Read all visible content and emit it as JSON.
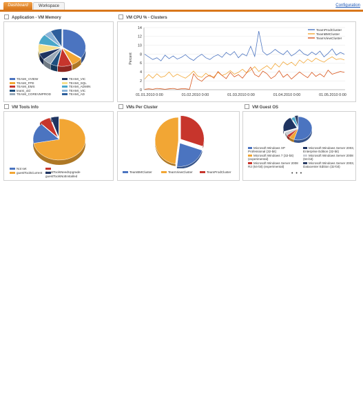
{
  "tabs": [
    {
      "label": "Dashboard"
    },
    {
      "label": "Workspace"
    }
  ],
  "config_link": "Configuration",
  "panels": {
    "vm_memory": {
      "title": "Application - VM Memory",
      "legend": [
        {
          "label": "TEAMI_VVIEW",
          "color": "#4b74c0"
        },
        {
          "label": "TEAMI_VIC",
          "color": "#1f3461"
        },
        {
          "label": "TEAMI_FPE",
          "color": "#f2a634"
        },
        {
          "label": "TEAMI_SQL",
          "color": "#f5df8b"
        },
        {
          "label": "TEAMI_EMS",
          "color": "#c7352c"
        },
        {
          "label": "TEAMI_ADMIN",
          "color": "#49a7c9"
        },
        {
          "label": "teami_old",
          "color": "#1e4f7f"
        },
        {
          "label": "TEAMI_VIC",
          "color": "#8bb4d9"
        },
        {
          "label": "TEAMI_COREVMPROD",
          "color": "#9aa9b7"
        },
        {
          "label": "TEAMI_AD",
          "color": "#2c5d9b"
        }
      ],
      "slices": [
        {
          "value": 35,
          "color": "#4b74c0"
        },
        {
          "value": 8,
          "color": "#f2a634"
        },
        {
          "value": 10,
          "color": "#c7352c"
        },
        {
          "value": 5,
          "color": "#1e4f7f"
        },
        {
          "value": 6,
          "color": "#9aa9b7"
        },
        {
          "value": 6,
          "color": "#1f3461"
        },
        {
          "value": 8,
          "color": "#f5df8b"
        },
        {
          "value": 9,
          "color": "#49a7c9"
        },
        {
          "value": 5,
          "color": "#8bb4d9"
        },
        {
          "value": 8,
          "color": "#2c5d9b"
        }
      ]
    },
    "cpu": {
      "title": "VM CPU % - Clusters"
    },
    "vm_tools": {
      "title": "VM Tools Info",
      "legend": [
        {
          "label": "Not set",
          "color": "#4b74c0"
        },
        {
          "label": "guestToolsNeedUpgrade",
          "color": "#c7352c"
        },
        {
          "label": "guestToolsCurrent",
          "color": "#f2a634"
        },
        {
          "label": "guestToolsNotInstalled",
          "color": "#1f3461"
        }
      ],
      "slices": [
        {
          "value": 72,
          "color": "#f2a634"
        },
        {
          "value": 16,
          "color": "#4b74c0"
        },
        {
          "value": 7,
          "color": "#c7352c"
        },
        {
          "value": 5,
          "color": "#1f3461"
        }
      ]
    },
    "vms_per_cluster": {
      "title": "VMs Per Cluster",
      "legend": [
        {
          "label": "TeamBMCluster",
          "color": "#4b74c0"
        },
        {
          "label": "TeamViewCluster",
          "color": "#f2a634"
        },
        {
          "label": "TeamProdCluster",
          "color": "#c7352c"
        }
      ],
      "slices": [
        {
          "value": 30,
          "color": "#c7352c"
        },
        {
          "value": 22,
          "color": "#4b74c0"
        },
        {
          "value": 48,
          "color": "#f2a634"
        }
      ]
    },
    "guest_os": {
      "title": "VM Guest OS",
      "legend": [
        {
          "label": "Microsoft Windows XP Professional (32-bit)",
          "color": "#4b74c0"
        },
        {
          "label": "Microsoft Windows Server 2003, Enterprise Edition (32-bit)",
          "color": "#1f3461"
        },
        {
          "label": "Microsoft Windows 7 (32-bit) (experimental)",
          "color": "#f2a634"
        },
        {
          "label": "Microsoft Windows Server 2008 (64-bit)",
          "color": "#c9ccd2"
        },
        {
          "label": "Microsoft Windows Server 2008 R2 (64-bit) (experimental)",
          "color": "#c7352c"
        },
        {
          "label": "Microsoft Windows Server 2003, Datacenter Edition (32-bit)",
          "color": "#2c3f66"
        }
      ],
      "slices": [
        {
          "value": 55,
          "color": "#4b74c0"
        },
        {
          "value": 6,
          "color": "#f2a634"
        },
        {
          "value": 4,
          "color": "#c7352c"
        },
        {
          "value": 5,
          "color": "#c9ccd2"
        },
        {
          "value": 22,
          "color": "#1f3461"
        },
        {
          "value": 4,
          "color": "#49a7c9"
        },
        {
          "value": 4,
          "color": "#2c3f66"
        }
      ],
      "more": "• • •"
    }
  },
  "chart_data": {
    "type": "line",
    "title": "VM CPU % - Clusters",
    "xlabel": "",
    "ylabel": "Percent",
    "ylim": [
      0,
      14
    ],
    "yticks": [
      0,
      2,
      4,
      6,
      8,
      10,
      12,
      14
    ],
    "xticks": [
      "01.01.2010 0:00",
      "01.02.2010 0:00",
      "01.03.2010 0:00",
      "01.04.2010 0:00",
      "01.05.2010 0:00"
    ],
    "legend_position": "top-right",
    "series": [
      {
        "name": "TeamProdCluster",
        "color": "#4b74c0",
        "values": [
          8,
          7.4,
          6.8,
          7.2,
          6.5,
          7.8,
          7,
          7.6,
          6.9,
          7.3,
          7.9,
          7.1,
          6.6,
          7.4,
          8,
          7.2,
          6.8,
          7.5,
          7.9,
          7.3,
          8.4,
          7.8,
          8.6,
          7.2,
          8.1,
          7.6,
          9.8,
          7.5,
          13.2,
          8.6,
          7.8,
          8.3,
          9.1,
          8.4,
          7.9,
          8.8,
          7.6,
          8.2,
          9,
          8.1,
          7.7,
          8.5,
          7.9,
          8.7,
          7.4,
          8.2,
          9.2,
          7.8,
          8.4,
          8
        ]
      },
      {
        "name": "TeamBMCluster",
        "color": "#f2a634",
        "values": [
          2.4,
          3.4,
          2.6,
          3.6,
          2.8,
          3.1,
          4,
          2.9,
          3.5,
          3,
          2.6,
          3.3,
          4.2,
          3.1,
          2.8,
          3.7,
          3,
          2.9,
          3.9,
          3.2,
          3.6,
          4.3,
          3.5,
          3.9,
          4.6,
          3.8,
          4.4,
          5.2,
          4.1,
          4.8,
          5.4,
          4.6,
          5.9,
          5.1,
          6.3,
          5.6,
          6.2,
          5.4,
          6.7,
          6,
          6.9,
          6.3,
          7.1,
          6.6,
          6.2,
          6.9,
          7.4,
          6.8,
          7,
          6.7
        ]
      },
      {
        "name": "TeamViewCluster",
        "color": "#d9561c",
        "values": [
          0.1,
          0.2,
          0.1,
          0.3,
          0.2,
          0.1,
          0.2,
          0.3,
          0.1,
          0.2,
          0.2,
          0.1,
          3.6,
          2.4,
          1.9,
          2.8,
          3.3,
          2.6,
          4.1,
          3.2,
          2.5,
          3.9,
          2.9,
          3.4,
          2.6,
          3.8,
          5.1,
          3.4,
          2.9,
          4.2,
          3.6,
          2.5,
          3.1,
          4.3,
          2.8,
          3.5,
          2.4,
          3.2,
          4,
          3.3,
          2.7,
          3.9,
          3,
          3.6,
          2.9,
          4.4,
          3.5,
          3.8,
          4.1,
          3.9
        ]
      }
    ]
  }
}
